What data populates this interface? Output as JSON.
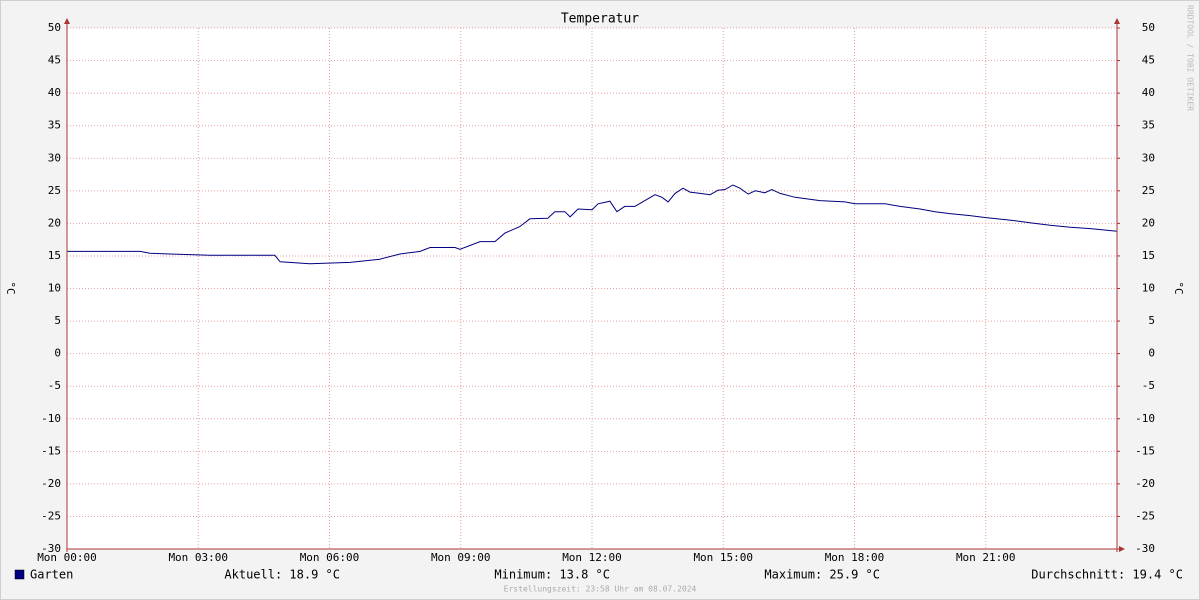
{
  "chart_data": {
    "type": "line",
    "title": "Temperatur",
    "y_label": "°C",
    "y2_label": "°C",
    "watermark": "RRDTOOL / TOBI OETIKER",
    "x": [
      0,
      1.67,
      1.9,
      2.35,
      3.27,
      4.75,
      4.87,
      5.55,
      6.47,
      7.15,
      7.61,
      8.07,
      8.3,
      8.87,
      8.98,
      9.44,
      9.78,
      10.01,
      10.35,
      10.58,
      10.99,
      11.15,
      11.38,
      11.5,
      11.68,
      12,
      12.14,
      12.41,
      12.57,
      12.75,
      12.98,
      13.21,
      13.44,
      13.6,
      13.74,
      13.9,
      14.08,
      14.24,
      14.47,
      14.7,
      14.88,
      15.04,
      15.22,
      15.38,
      15.57,
      15.73,
      15.95,
      16.11,
      16.3,
      16.64,
      17.21,
      17.78,
      18.01,
      18.7,
      19.04,
      19.5,
      19.84,
      20.18,
      20.64,
      20.98,
      21.55,
      22.01,
      22.47,
      22.93,
      23.39,
      24
    ],
    "series": [
      {
        "name": "Garten",
        "color": "#000080",
        "values": [
          15.7,
          15.7,
          15.4,
          15.3,
          15.1,
          15.1,
          14.1,
          13.8,
          14.0,
          14.5,
          15.3,
          15.7,
          16.3,
          16.3,
          16.0,
          17.2,
          17.2,
          18.5,
          19.5,
          20.7,
          20.8,
          21.8,
          21.8,
          21.0,
          22.2,
          22.1,
          23.0,
          23.4,
          21.8,
          22.6,
          22.6,
          23.5,
          24.4,
          24.0,
          23.3,
          24.6,
          25.4,
          24.8,
          24.6,
          24.4,
          25.1,
          25.2,
          25.9,
          25.4,
          24.5,
          25.0,
          24.7,
          25.2,
          24.6,
          24.0,
          23.5,
          23.3,
          23.0,
          23.0,
          22.6,
          22.2,
          21.8,
          21.5,
          21.2,
          20.9,
          20.5,
          20.1,
          19.7,
          19.4,
          19.2,
          18.8
        ]
      }
    ],
    "xlim": [
      0,
      24
    ],
    "xticks": [
      {
        "value": 0,
        "label": "Mon 00:00"
      },
      {
        "value": 3,
        "label": "Mon 03:00"
      },
      {
        "value": 6,
        "label": "Mon 06:00"
      },
      {
        "value": 9,
        "label": "Mon 09:00"
      },
      {
        "value": 12,
        "label": "Mon 12:00"
      },
      {
        "value": 15,
        "label": "Mon 15:00"
      },
      {
        "value": 18,
        "label": "Mon 18:00"
      },
      {
        "value": 21,
        "label": "Mon 21:00"
      }
    ],
    "ylim": [
      -30,
      50
    ],
    "yticks": [
      -30,
      -25,
      -20,
      -15,
      -10,
      -5,
      0,
      5,
      10,
      15,
      20,
      25,
      30,
      35,
      40,
      45,
      50
    ],
    "y2lim": [
      -30,
      50
    ],
    "y2ticks": [
      -30,
      -25,
      -20,
      -15,
      -10,
      -5,
      0,
      5,
      10,
      15,
      20,
      25,
      30,
      35,
      40,
      45,
      50
    ],
    "grid": true,
    "stats": [
      "Aktuell: 18.9 °C",
      "Minimum: 13.8 °C",
      "Maximum: 25.9 °C",
      "Durchschnitt: 19.4 °C"
    ],
    "footer": "Erstellungszeit: 23:58 Uhr am 08.07.2024"
  }
}
